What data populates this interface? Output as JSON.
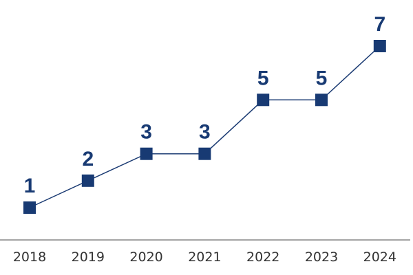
{
  "chart_data": {
    "type": "line",
    "categories": [
      "2018",
      "2019",
      "2020",
      "2021",
      "2022",
      "2023",
      "2024"
    ],
    "values": [
      1,
      2,
      3,
      3,
      5,
      5,
      7
    ],
    "data_labels": [
      "1",
      "2",
      "3",
      "3",
      "5",
      "5",
      "7"
    ],
    "title": "",
    "xlabel": "",
    "ylabel": "",
    "ylim": [
      1,
      7
    ],
    "grid": false,
    "legend": "none",
    "marker": "square",
    "color": "#183a73"
  }
}
